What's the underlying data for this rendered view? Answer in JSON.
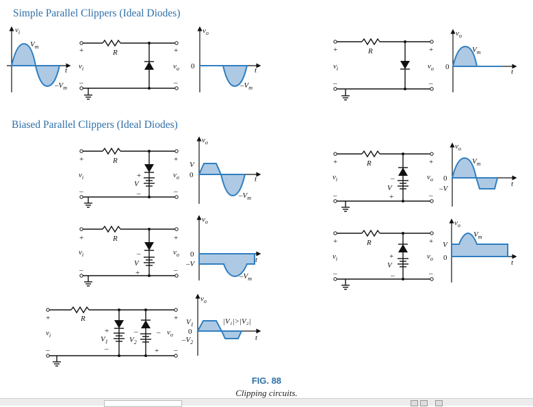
{
  "titles": {
    "simple": "Simple Parallel Clippers (Ideal Diodes)",
    "biased": "Biased Parallel Clippers (Ideal Diodes)"
  },
  "labels": {
    "vi": "v",
    "vi_sub": "i",
    "vo": "v",
    "vo_sub": "o",
    "R": "R",
    "Vm": "V",
    "Vm_sub": "m",
    "neg_Vm": "–V",
    "t": "t",
    "zero": "0",
    "V": "V",
    "neg_V": "–V",
    "V1": "V",
    "V1_sub": "1",
    "V2": "V",
    "V2_sub": "2",
    "neg_V2": "–V",
    "plus": "+",
    "minus": "–",
    "condition": "|V₁|>|V₂|"
  },
  "caption": {
    "figure": "FIG. 88",
    "text": "Clipping circuits."
  },
  "colors": {
    "accent": "#2f6fa7",
    "wave": "#2f7ec0",
    "fill": "#aec9e4"
  }
}
